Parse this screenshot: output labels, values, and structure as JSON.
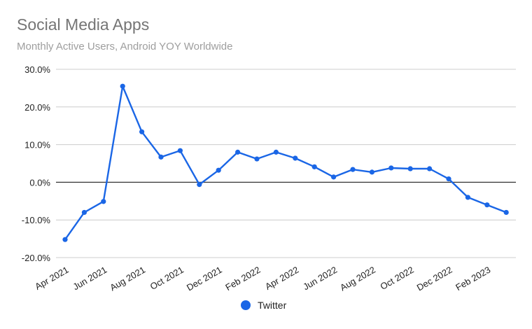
{
  "title": "Social Media Apps",
  "subtitle": "Monthly Active Users, Android YOY Worldwide",
  "colors": {
    "series": "#1a66e6",
    "grid": "#cccccc",
    "zero_line": "#333333",
    "title": "#757575",
    "subtitle": "#9e9e9e"
  },
  "chart_data": {
    "type": "line",
    "title": "Social Media Apps",
    "subtitle": "Monthly Active Users, Android YOY Worldwide",
    "xlabel": "",
    "ylabel": "",
    "ylim": [
      -20,
      30
    ],
    "y_ticks": [
      30,
      20,
      10,
      0,
      -10,
      -20
    ],
    "y_tick_labels": [
      "30.0%",
      "20.0%",
      "10.0%",
      "0.0%",
      "-10.0%",
      "-20.0%"
    ],
    "x": [
      "2021-04",
      "2021-05",
      "2021-06",
      "2021-07",
      "2021-08",
      "2021-09",
      "2021-10",
      "2021-11",
      "2021-12",
      "2022-01",
      "2022-02",
      "2022-03",
      "2022-04",
      "2022-05",
      "2022-06",
      "2022-07",
      "2022-08",
      "2022-09",
      "2022-10",
      "2022-11",
      "2022-12",
      "2023-01",
      "2023-02",
      "2023-03"
    ],
    "x_tick_labels": [
      "Apr 2021",
      "Jun 2021",
      "Aug 2021",
      "Oct 2021",
      "Dec 2021",
      "Feb 2022",
      "Apr 2022",
      "Jun 2022",
      "Aug 2022",
      "Oct 2022",
      "Dec 2022",
      "Feb 2023"
    ],
    "grid": true,
    "legend": "bottom",
    "series": [
      {
        "name": "Twitter",
        "color": "#1a66e6",
        "values": [
          -15.2,
          -8.0,
          -5.1,
          25.5,
          13.4,
          6.7,
          8.4,
          -0.6,
          3.2,
          8.0,
          6.2,
          8.0,
          6.4,
          4.1,
          1.4,
          3.4,
          2.7,
          3.8,
          3.6,
          3.6,
          0.9,
          -4.0,
          -6.0,
          -8.0
        ]
      }
    ]
  }
}
